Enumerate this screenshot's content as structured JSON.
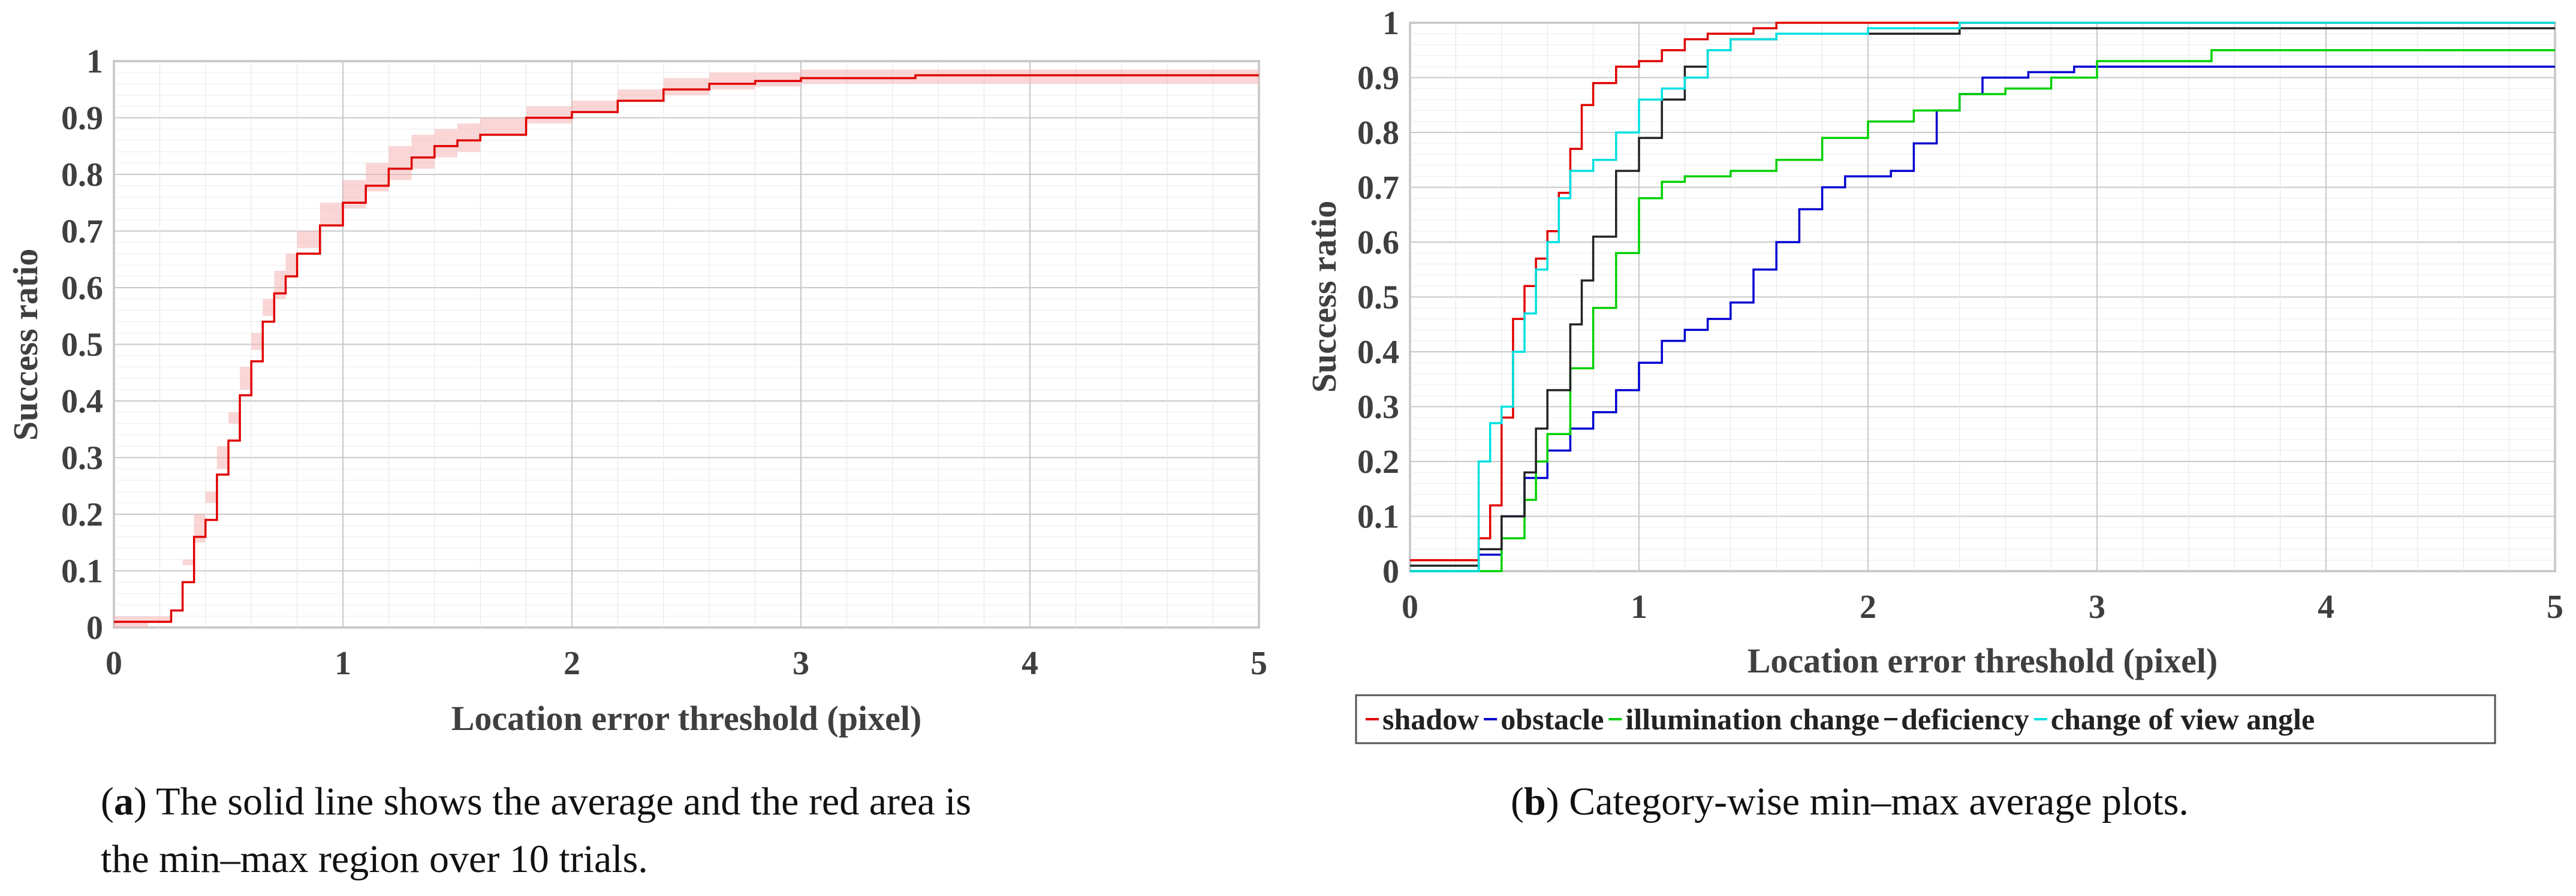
{
  "chart_data": [
    {
      "type": "line",
      "panel": "a",
      "title": "",
      "xlabel": "Location error threshold (pixel)",
      "ylabel": "Success ratio",
      "xlim": [
        0,
        5
      ],
      "ylim": [
        0,
        1
      ],
      "xticks": [
        0,
        1,
        2,
        3,
        4,
        5
      ],
      "yticks": [
        0,
        0.1,
        0.2,
        0.3,
        0.4,
        0.5,
        0.6,
        0.7,
        0.8,
        0.9,
        1
      ],
      "xtick_labels": [
        "0",
        "1",
        "2",
        "3",
        "4",
        "5"
      ],
      "ytick_labels": [
        "0",
        "0.1",
        "0.2",
        "0.3",
        "0.4",
        "0.5",
        "0.6",
        "0.7",
        "0.8",
        "0.9",
        "1"
      ],
      "grid": true,
      "series": [
        {
          "name": "average",
          "color": "#e00000",
          "x": [
            0,
            0.15,
            0.25,
            0.3,
            0.35,
            0.4,
            0.45,
            0.5,
            0.55,
            0.6,
            0.65,
            0.7,
            0.75,
            0.8,
            0.9,
            1.0,
            1.1,
            1.2,
            1.3,
            1.4,
            1.5,
            1.6,
            1.8,
            2.0,
            2.2,
            2.4,
            2.6,
            2.8,
            3.0,
            3.5,
            4.0,
            4.5,
            5.0
          ],
          "y": [
            0.01,
            0.01,
            0.03,
            0.08,
            0.16,
            0.19,
            0.27,
            0.33,
            0.41,
            0.47,
            0.54,
            0.59,
            0.62,
            0.66,
            0.71,
            0.75,
            0.78,
            0.81,
            0.83,
            0.85,
            0.86,
            0.87,
            0.9,
            0.91,
            0.93,
            0.95,
            0.96,
            0.965,
            0.97,
            0.975,
            0.975,
            0.975,
            0.975
          ]
        }
      ],
      "band": {
        "name": "min-max region",
        "color": "#f5b5b5",
        "x": [
          0,
          0.15,
          0.25,
          0.3,
          0.35,
          0.4,
          0.45,
          0.5,
          0.55,
          0.6,
          0.65,
          0.7,
          0.75,
          0.8,
          0.9,
          1.0,
          1.1,
          1.2,
          1.3,
          1.4,
          1.5,
          1.6,
          1.8,
          2.0,
          2.2,
          2.4,
          2.6,
          2.8,
          3.0,
          3.5,
          4.0,
          4.5,
          5.0
        ],
        "lower": [
          0.0,
          0.0,
          0.01,
          0.05,
          0.12,
          0.15,
          0.22,
          0.28,
          0.36,
          0.42,
          0.49,
          0.55,
          0.58,
          0.62,
          0.67,
          0.71,
          0.74,
          0.77,
          0.79,
          0.81,
          0.83,
          0.84,
          0.87,
          0.89,
          0.91,
          0.93,
          0.94,
          0.95,
          0.955,
          0.96,
          0.96,
          0.96,
          0.96
        ],
        "upper": [
          0.02,
          0.02,
          0.05,
          0.11,
          0.2,
          0.24,
          0.32,
          0.38,
          0.46,
          0.52,
          0.58,
          0.63,
          0.66,
          0.7,
          0.75,
          0.79,
          0.82,
          0.85,
          0.87,
          0.88,
          0.89,
          0.9,
          0.92,
          0.93,
          0.95,
          0.97,
          0.98,
          0.98,
          0.985,
          0.985,
          0.985,
          0.985,
          0.985
        ]
      },
      "caption": {
        "label": "a",
        "line1": " The solid line shows the average and the red area is",
        "line2": "the min–max region over 10 trials."
      }
    },
    {
      "type": "line",
      "panel": "b",
      "title": "",
      "xlabel": "Location error threshold (pixel)",
      "ylabel": "Success ratio",
      "xlim": [
        0,
        5
      ],
      "ylim": [
        0,
        1
      ],
      "xticks": [
        0,
        1,
        2,
        3,
        4,
        5
      ],
      "yticks": [
        0,
        0.1,
        0.2,
        0.3,
        0.4,
        0.5,
        0.6,
        0.7,
        0.8,
        0.9,
        1
      ],
      "xtick_labels": [
        "0",
        "1",
        "2",
        "3",
        "4",
        "5"
      ],
      "ytick_labels": [
        "0",
        "0.1",
        "0.2",
        "0.3",
        "0.4",
        "0.5",
        "0.6",
        "0.7",
        "0.8",
        "0.9",
        "1"
      ],
      "grid": true,
      "legend_position": "bottom",
      "series": [
        {
          "name": "shadow",
          "color": "#e00000",
          "x": [
            0,
            0.2,
            0.3,
            0.35,
            0.4,
            0.45,
            0.5,
            0.55,
            0.6,
            0.65,
            0.7,
            0.75,
            0.8,
            0.9,
            1.0,
            1.1,
            1.2,
            1.3,
            1.5,
            1.6,
            2.0,
            5.0
          ],
          "y": [
            0.02,
            0.02,
            0.06,
            0.12,
            0.28,
            0.46,
            0.52,
            0.57,
            0.62,
            0.69,
            0.77,
            0.85,
            0.89,
            0.92,
            0.93,
            0.95,
            0.97,
            0.98,
            0.99,
            1.0,
            1.0,
            1.0
          ]
        },
        {
          "name": "obstacle",
          "color": "#0000d0",
          "x": [
            0,
            0.3,
            0.4,
            0.5,
            0.6,
            0.7,
            0.8,
            0.9,
            1.0,
            1.1,
            1.2,
            1.3,
            1.4,
            1.5,
            1.6,
            1.7,
            1.8,
            1.9,
            2.0,
            2.1,
            2.2,
            2.3,
            2.4,
            2.5,
            2.7,
            2.9,
            3.0,
            5.0
          ],
          "y": [
            0.0,
            0.03,
            0.1,
            0.17,
            0.22,
            0.26,
            0.29,
            0.33,
            0.38,
            0.42,
            0.44,
            0.46,
            0.49,
            0.55,
            0.6,
            0.66,
            0.7,
            0.72,
            0.72,
            0.73,
            0.78,
            0.84,
            0.87,
            0.9,
            0.91,
            0.92,
            0.92,
            0.92
          ]
        },
        {
          "name": "illumination change",
          "color": "#00d000",
          "x": [
            0,
            0.3,
            0.4,
            0.5,
            0.55,
            0.6,
            0.7,
            0.8,
            0.9,
            1.0,
            1.1,
            1.2,
            1.4,
            1.6,
            1.8,
            2.0,
            2.2,
            2.4,
            2.6,
            2.8,
            3.0,
            3.5,
            5.0
          ],
          "y": [
            0.0,
            0.0,
            0.06,
            0.13,
            0.2,
            0.25,
            0.37,
            0.48,
            0.58,
            0.68,
            0.71,
            0.72,
            0.73,
            0.75,
            0.79,
            0.82,
            0.84,
            0.87,
            0.88,
            0.9,
            0.93,
            0.95,
            0.95
          ]
        },
        {
          "name": "deficiency",
          "color": "#222222",
          "x": [
            0,
            0.2,
            0.3,
            0.4,
            0.5,
            0.55,
            0.6,
            0.7,
            0.75,
            0.8,
            0.9,
            1.0,
            1.1,
            1.2,
            1.3,
            1.4,
            1.6,
            2.0,
            2.4,
            2.5,
            5.0
          ],
          "y": [
            0.01,
            0.01,
            0.04,
            0.1,
            0.18,
            0.26,
            0.33,
            0.45,
            0.53,
            0.61,
            0.73,
            0.79,
            0.86,
            0.92,
            0.95,
            0.97,
            0.98,
            0.98,
            0.99,
            0.99,
            0.99
          ]
        },
        {
          "name": "change of view angle",
          "color": "#00e0e0",
          "x": [
            0,
            0.2,
            0.3,
            0.35,
            0.4,
            0.45,
            0.5,
            0.55,
            0.6,
            0.65,
            0.7,
            0.8,
            0.9,
            1.0,
            1.1,
            1.2,
            1.3,
            1.4,
            1.6,
            2.0,
            2.4,
            5.0
          ],
          "y": [
            0.0,
            0.0,
            0.2,
            0.27,
            0.3,
            0.4,
            0.47,
            0.55,
            0.6,
            0.68,
            0.73,
            0.75,
            0.8,
            0.86,
            0.88,
            0.9,
            0.95,
            0.97,
            0.98,
            0.99,
            1.0,
            1.0
          ]
        }
      ],
      "caption": {
        "label": "b",
        "line1": " Category-wise min–max average plots."
      }
    }
  ]
}
